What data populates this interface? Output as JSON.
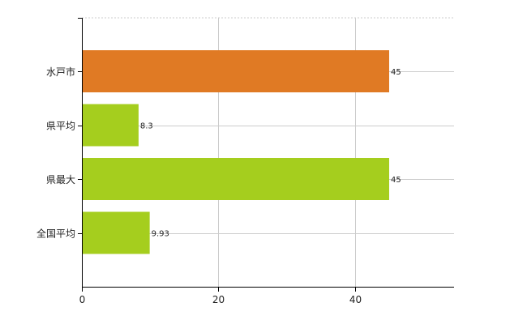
{
  "chart_data": {
    "type": "bar",
    "orientation": "horizontal",
    "categories": [
      "水戸市",
      "県平均",
      "県最大",
      "全国平均"
    ],
    "values": [
      45,
      8.3,
      45,
      9.93
    ],
    "data_labels": [
      "45",
      "8.3",
      "45",
      "9.93"
    ],
    "x_ticks": [
      0,
      20,
      40
    ],
    "xlim": [
      0,
      54.5
    ],
    "title": "",
    "xlabel": "",
    "ylabel": "",
    "grid": true,
    "legend": "none",
    "colors": {
      "highlight": "#E07A24",
      "default": "#A5CE1E",
      "grid": "#CCCCCC",
      "axis": "#000000"
    },
    "highlight_index": 0
  }
}
